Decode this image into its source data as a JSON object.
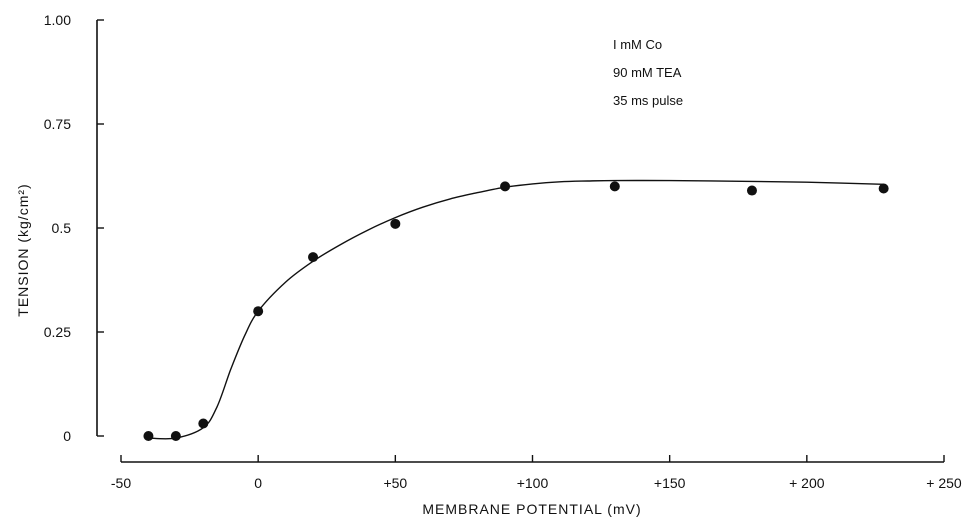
{
  "chart_data": {
    "type": "scatter",
    "title": "",
    "xlabel": "MEMBRANE  POTENTIAL  (mV)",
    "ylabel": "TENSION    (kg/cm²)",
    "xlim": [
      -50,
      250
    ],
    "ylim": [
      0,
      1.0
    ],
    "x_ticks": [
      -50,
      0,
      50,
      100,
      150,
      200,
      250
    ],
    "x_tick_labels": [
      "-50",
      "0",
      "+50",
      "+100",
      "+150",
      "+ 200",
      "+ 250"
    ],
    "y_ticks": [
      0,
      0.25,
      0.5,
      0.75,
      1.0
    ],
    "y_tick_labels": [
      "0",
      "0.25",
      "0.5",
      "0.75",
      "1.00"
    ],
    "annotations": [
      "I mM Co",
      "90 mM TEA",
      "35 ms pulse"
    ],
    "grid": false,
    "series": [
      {
        "type": "scatter",
        "x": [
          -40,
          -30,
          -20,
          0,
          20,
          50,
          90,
          130,
          180,
          228
        ],
        "y": [
          0.0,
          0.0,
          0.03,
          0.3,
          0.43,
          0.51,
          0.6,
          0.6,
          0.59,
          0.595
        ]
      },
      {
        "type": "line",
        "x": [
          -40,
          -30,
          -20,
          -15,
          -10,
          -5,
          0,
          10,
          20,
          30,
          40,
          50,
          60,
          70,
          80,
          90,
          100,
          110,
          120,
          130,
          150,
          180,
          200,
          228
        ],
        "y": [
          -0.005,
          -0.005,
          0.02,
          0.07,
          0.16,
          0.24,
          0.3,
          0.37,
          0.42,
          0.46,
          0.495,
          0.525,
          0.55,
          0.57,
          0.585,
          0.598,
          0.606,
          0.611,
          0.613,
          0.614,
          0.614,
          0.612,
          0.61,
          0.605
        ]
      }
    ]
  }
}
